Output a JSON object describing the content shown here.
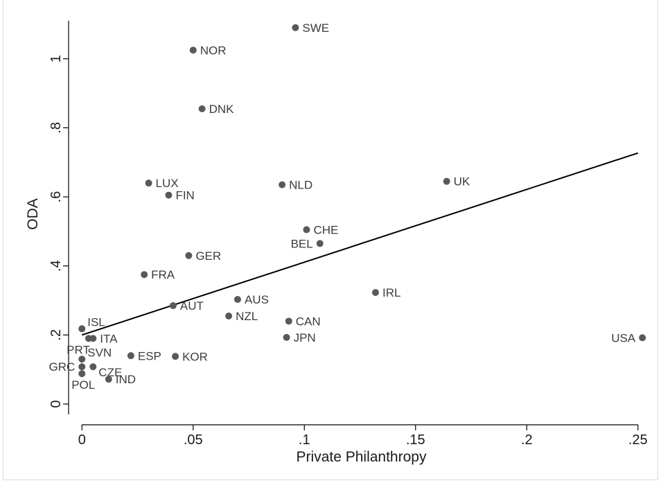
{
  "chart_data": {
    "type": "scatter",
    "title": "",
    "xlabel": "Private Philanthropy",
    "ylabel": "ODA",
    "xlim": [
      -0.006,
      0.256
    ],
    "ylim": [
      -0.03,
      1.13
    ],
    "x_ticks": [
      {
        "value": 0,
        "label": "0"
      },
      {
        "value": 0.05,
        "label": ".05"
      },
      {
        "value": 0.1,
        "label": ".1"
      },
      {
        "value": 0.15,
        "label": ".15"
      },
      {
        "value": 0.2,
        "label": ".2"
      },
      {
        "value": 0.25,
        "label": ".25"
      }
    ],
    "y_ticks": [
      {
        "value": 0,
        "label": "0"
      },
      {
        "value": 0.2,
        "label": ".2"
      },
      {
        "value": 0.4,
        "label": ".4"
      },
      {
        "value": 0.6,
        "label": ".6"
      },
      {
        "value": 0.8,
        "label": ".8"
      },
      {
        "value": 1,
        "label": "1"
      }
    ],
    "grid": false,
    "marker_color": "#595959",
    "line_color": "#000000",
    "points": [
      {
        "label": "SWE",
        "x": 0.096,
        "y": 1.09,
        "pos": "right"
      },
      {
        "label": "NOR",
        "x": 0.05,
        "y": 1.025,
        "pos": "right"
      },
      {
        "label": "DNK",
        "x": 0.054,
        "y": 0.855,
        "pos": "right"
      },
      {
        "label": "LUX",
        "x": 0.03,
        "y": 0.64,
        "pos": "right"
      },
      {
        "label": "FIN",
        "x": 0.039,
        "y": 0.605,
        "pos": "right"
      },
      {
        "label": "NLD",
        "x": 0.09,
        "y": 0.635,
        "pos": "right"
      },
      {
        "label": "UK",
        "x": 0.164,
        "y": 0.645,
        "pos": "right"
      },
      {
        "label": "CHE",
        "x": 0.101,
        "y": 0.505,
        "pos": "right"
      },
      {
        "label": "BEL",
        "x": 0.107,
        "y": 0.465,
        "pos": "left"
      },
      {
        "label": "GER",
        "x": 0.048,
        "y": 0.43,
        "pos": "right"
      },
      {
        "label": "FRA",
        "x": 0.028,
        "y": 0.375,
        "pos": "right"
      },
      {
        "label": "IRL",
        "x": 0.132,
        "y": 0.323,
        "pos": "right"
      },
      {
        "label": "AUS",
        "x": 0.07,
        "y": 0.303,
        "pos": "right"
      },
      {
        "label": "AUT",
        "x": 0.041,
        "y": 0.285,
        "pos": "right"
      },
      {
        "label": "NZL",
        "x": 0.066,
        "y": 0.255,
        "pos": "right"
      },
      {
        "label": "CAN",
        "x": 0.093,
        "y": 0.24,
        "pos": "right"
      },
      {
        "label": "ISL",
        "x": 0.0,
        "y": 0.218,
        "pos": "topright"
      },
      {
        "label": "JPN",
        "x": 0.092,
        "y": 0.193,
        "pos": "right"
      },
      {
        "label": "USA",
        "x": 0.252,
        "y": 0.192,
        "pos": "left"
      },
      {
        "label": "ITA",
        "x": 0.005,
        "y": 0.19,
        "pos": "right"
      },
      {
        "label": "PRT",
        "x": 0.003,
        "y": 0.19,
        "pos": "belowleft"
      },
      {
        "label": "ESP",
        "x": 0.022,
        "y": 0.14,
        "pos": "right"
      },
      {
        "label": "KOR",
        "x": 0.042,
        "y": 0.138,
        "pos": "right"
      },
      {
        "label": "SVN",
        "x": 0.0,
        "y": 0.13,
        "pos": "aboveright"
      },
      {
        "label": "GRC",
        "x": 0.0,
        "y": 0.108,
        "pos": "left"
      },
      {
        "label": "CZE",
        "x": 0.005,
        "y": 0.108,
        "pos": "belowright"
      },
      {
        "label": "POL",
        "x": 0.0,
        "y": 0.088,
        "pos": "belowleft"
      },
      {
        "label": "IND",
        "x": 0.012,
        "y": 0.072,
        "pos": "right"
      }
    ],
    "fit_line": {
      "x": [
        0.0,
        0.25
      ],
      "y": [
        0.2,
        0.727
      ]
    }
  }
}
